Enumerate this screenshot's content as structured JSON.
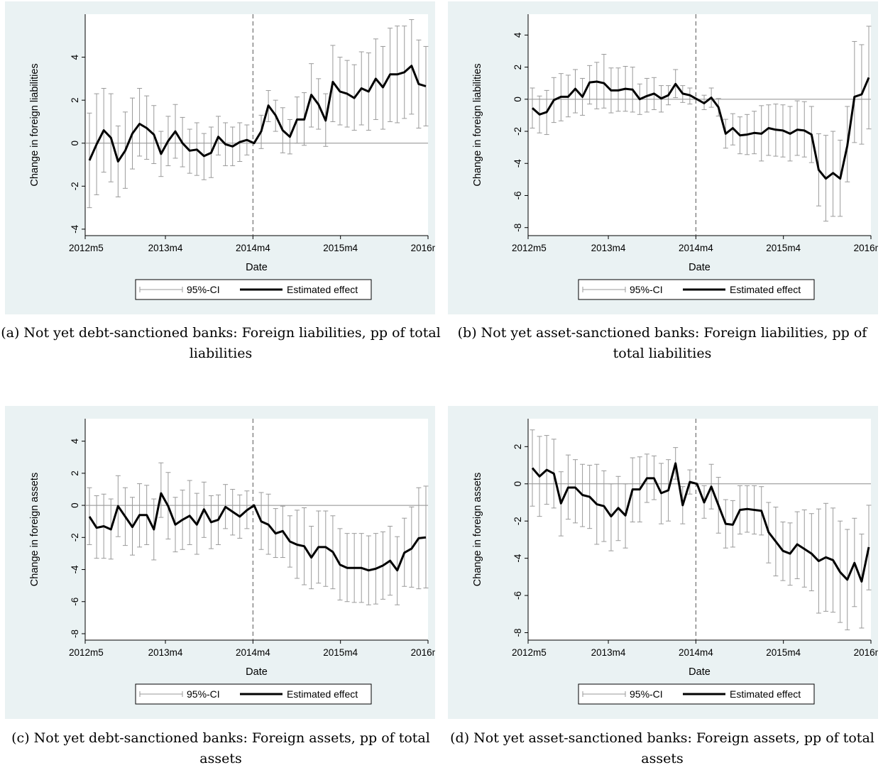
{
  "charts": [
    {
      "caption": "(a) Not yet debt-sanctioned banks: Foreign liabilities, pp of total liabilities",
      "chart_data": {
        "type": "line",
        "x_start": "2012m5",
        "x_end": "2016m4",
        "event_date": "2014m4",
        "xlabel": "Date",
        "ylabel": "Change in foreign liabilities",
        "xticks": [
          "2012m5",
          "2013m4",
          "2014m4",
          "2015m4",
          "2016m4"
        ],
        "yticks": [
          "-4",
          "-2",
          "0",
          "2",
          "4"
        ],
        "ylim": [
          -4.3,
          6
        ],
        "legend": [
          "95%-CI",
          "Estimated effect"
        ],
        "series": [
          {
            "name": "Estimated effect",
            "values": [
              -0.8,
              -0.05,
              0.6,
              0.25,
              -0.85,
              -0.35,
              0.45,
              0.9,
              0.7,
              0.4,
              -0.5,
              0.1,
              0.55,
              0.0,
              -0.35,
              -0.3,
              -0.6,
              -0.45,
              0.3,
              -0.05,
              -0.15,
              0.05,
              0.15,
              0.0,
              0.55,
              1.75,
              1.3,
              0.6,
              0.3,
              1.1,
              1.1,
              2.25,
              1.8,
              1.05,
              2.85,
              2.4,
              2.3,
              2.1,
              2.55,
              2.4,
              3.0,
              2.6,
              3.2,
              3.2,
              3.3,
              3.6,
              2.75,
              2.65
            ]
          },
          {
            "name": "95%-CI",
            "lower": [
              -3.0,
              -2.4,
              -1.35,
              -1.8,
              -2.5,
              -2.1,
              -1.2,
              -0.6,
              -0.75,
              -0.95,
              -1.55,
              -1.05,
              -0.7,
              -1.1,
              -1.4,
              -1.5,
              -1.7,
              -1.6,
              -0.55,
              -1.05,
              -1.05,
              -0.85,
              -0.55,
              0.0,
              -0.25,
              1.0,
              0.55,
              -0.45,
              -0.5,
              0.0,
              -0.1,
              0.75,
              0.65,
              -0.15,
              1.0,
              0.85,
              0.75,
              0.6,
              0.85,
              0.6,
              1.1,
              0.65,
              1.0,
              0.95,
              1.15,
              1.35,
              0.7,
              0.8
            ]
          },
          {
            "name": "95%-CI upper",
            "upper": [
              1.4,
              2.3,
              2.55,
              2.3,
              0.8,
              1.45,
              2.1,
              2.55,
              2.2,
              1.75,
              0.55,
              1.25,
              1.8,
              1.2,
              0.65,
              0.95,
              0.45,
              0.75,
              1.25,
              0.95,
              0.75,
              0.95,
              0.85,
              0.0,
              1.3,
              2.45,
              2.0,
              1.65,
              1.1,
              2.15,
              2.35,
              3.7,
              3.0,
              2.3,
              4.55,
              4.0,
              3.85,
              3.65,
              4.25,
              4.2,
              4.85,
              4.5,
              5.35,
              5.45,
              5.45,
              5.75,
              4.8,
              4.5
            ]
          }
        ]
      }
    },
    {
      "caption": "(b) Not yet asset-sanctioned banks: Foreign liabilities, pp of total liabilities",
      "chart_data": {
        "type": "line",
        "x_start": "2012m5",
        "x_end": "2016m4",
        "event_date": "2014m4",
        "xlabel": "Date",
        "ylabel": "Change in foreign liabilities",
        "xticks": [
          "2012m5",
          "2013m4",
          "2014m4",
          "2015m4",
          "2016m4"
        ],
        "yticks": [
          "-8",
          "-6",
          "-4",
          "-2",
          "0",
          "2",
          "4"
        ],
        "ylim": [
          -8.5,
          5.3
        ],
        "legend": [
          "95%-CI",
          "Estimated effect"
        ],
        "series": [
          {
            "name": "Estimated effect",
            "values": [
              -0.55,
              -0.95,
              -0.8,
              -0.05,
              0.15,
              0.15,
              0.65,
              0.15,
              1.05,
              1.1,
              1.0,
              0.55,
              0.55,
              0.65,
              0.6,
              0.0,
              0.2,
              0.35,
              0.05,
              0.25,
              0.95,
              0.35,
              0.25,
              0.0,
              -0.25,
              0.1,
              -0.5,
              -2.15,
              -1.8,
              -2.25,
              -2.2,
              -2.1,
              -2.15,
              -1.8,
              -1.9,
              -1.95,
              -2.15,
              -1.9,
              -1.95,
              -2.2,
              -4.4,
              -4.95,
              -4.6,
              -4.95,
              -2.9,
              0.15,
              0.3,
              1.35
            ]
          },
          {
            "name": "95%-CI",
            "lower": [
              -1.8,
              -2.1,
              -2.2,
              -1.45,
              -1.35,
              -1.1,
              -0.85,
              -1.0,
              -0.3,
              -0.6,
              -0.55,
              -0.85,
              -0.75,
              -0.75,
              -0.8,
              -0.95,
              -0.8,
              -0.65,
              -0.8,
              -0.35,
              0.1,
              -0.2,
              -0.3,
              0.0,
              -0.65,
              -0.5,
              -1.05,
              -3.05,
              -2.85,
              -3.4,
              -3.45,
              -3.4,
              -3.85,
              -3.5,
              -3.55,
              -3.6,
              -3.85,
              -3.5,
              -3.6,
              -3.95,
              -6.65,
              -7.6,
              -7.3,
              -7.3,
              -5.15,
              -2.7,
              -2.8,
              -1.85
            ]
          },
          {
            "name": "95%-CI upper",
            "upper": [
              0.7,
              0.2,
              0.55,
              1.35,
              1.6,
              1.5,
              1.85,
              1.3,
              2.1,
              2.3,
              2.8,
              1.95,
              1.95,
              2.05,
              2.0,
              0.95,
              1.3,
              1.35,
              0.85,
              0.85,
              1.85,
              0.85,
              0.7,
              0.0,
              0.25,
              0.7,
              0.05,
              -1.25,
              -0.9,
              -1.1,
              -0.95,
              -0.75,
              -0.4,
              -0.35,
              -0.3,
              -0.35,
              -0.45,
              -0.1,
              -0.15,
              -0.45,
              -2.15,
              -2.25,
              -2.0,
              -2.55,
              -0.45,
              3.6,
              3.4,
              4.55
            ]
          }
        ]
      }
    },
    {
      "caption": "(c) Not yet debt-sanctioned banks: Foreign assets, pp of total assets",
      "chart_data": {
        "type": "line",
        "x_start": "2012m5",
        "x_end": "2016m4",
        "event_date": "2014m4",
        "xlabel": "Date",
        "ylabel": "Change in foreign assets",
        "xticks": [
          "2012m5",
          "2013m4",
          "2014m4",
          "2015m4",
          "2016m4"
        ],
        "yticks": [
          "-8",
          "-6",
          "-4",
          "-2",
          "0",
          "2",
          "4"
        ],
        "ylim": [
          -8.4,
          5.4
        ],
        "legend": [
          "95%-CI",
          "Estimated effect"
        ],
        "series": [
          {
            "name": "Estimated effect",
            "values": [
              -0.7,
              -1.4,
              -1.3,
              -1.5,
              -0.05,
              -0.7,
              -1.35,
              -0.6,
              -0.6,
              -1.5,
              0.75,
              -0.05,
              -1.2,
              -0.9,
              -0.65,
              -1.2,
              -0.25,
              -1.05,
              -0.9,
              -0.1,
              -0.4,
              -0.7,
              -0.3,
              0.0,
              -1.0,
              -1.2,
              -1.75,
              -1.6,
              -2.25,
              -2.45,
              -2.55,
              -3.25,
              -2.6,
              -2.6,
              -2.9,
              -3.7,
              -3.9,
              -3.9,
              -3.9,
              -4.05,
              -3.95,
              -3.75,
              -3.45,
              -4.05,
              -2.95,
              -2.7,
              -2.05,
              -2.0
            ]
          },
          {
            "name": "95%-CI",
            "lower": [
              -2.45,
              -3.3,
              -3.3,
              -3.35,
              -1.95,
              -2.5,
              -3.1,
              -2.6,
              -2.45,
              -3.4,
              -0.75,
              -2.1,
              -2.9,
              -2.75,
              -2.45,
              -3.05,
              -2.0,
              -2.7,
              -2.45,
              -1.45,
              -1.85,
              -2.05,
              -1.45,
              0.0,
              -2.75,
              -3.05,
              -3.25,
              -3.25,
              -3.85,
              -4.55,
              -4.95,
              -5.2,
              -4.85,
              -5.05,
              -5.2,
              -5.9,
              -6.0,
              -6.05,
              -6.05,
              -6.2,
              -6.15,
              -5.85,
              -5.6,
              -6.2,
              -5.05,
              -5.1,
              -5.2,
              -5.15
            ]
          },
          {
            "name": "95%-CI upper",
            "upper": [
              1.1,
              0.6,
              0.7,
              0.4,
              1.85,
              1.1,
              0.5,
              1.35,
              1.25,
              0.4,
              2.65,
              2.05,
              0.5,
              0.95,
              1.55,
              0.75,
              1.45,
              0.6,
              0.65,
              1.3,
              1.0,
              0.65,
              0.9,
              0.0,
              0.8,
              0.7,
              -0.2,
              -0.05,
              -0.65,
              -0.3,
              -0.15,
              -1.3,
              -0.35,
              -0.35,
              -0.65,
              -1.45,
              -1.75,
              -1.75,
              -1.75,
              -1.9,
              -1.75,
              -1.65,
              -1.3,
              -1.95,
              -0.8,
              -0.1,
              1.1,
              1.2
            ]
          }
        ]
      }
    },
    {
      "caption": "(d) Not yet asset-sanctioned banks: Foreign assets, pp of total assets",
      "chart_data": {
        "type": "line",
        "x_start": "2012m5",
        "x_end": "2016m4",
        "event_date": "2014m4",
        "xlabel": "Date",
        "ylabel": "Change in foreign assets",
        "xticks": [
          "2012m5",
          "2013m4",
          "2014m4",
          "2015m4",
          "2016m4"
        ],
        "yticks": [
          "-8",
          "-6",
          "-4",
          "-2",
          "0",
          "2"
        ],
        "ylim": [
          -8.4,
          3.5
        ],
        "legend": [
          "95%-CI",
          "Estimated effect"
        ],
        "series": [
          {
            "name": "Estimated effect",
            "values": [
              0.85,
              0.4,
              0.75,
              0.55,
              -1.05,
              -0.2,
              -0.2,
              -0.6,
              -0.7,
              -1.1,
              -1.2,
              -1.75,
              -1.3,
              -1.7,
              -0.3,
              -0.3,
              0.3,
              0.3,
              -0.5,
              -0.35,
              1.1,
              -1.15,
              0.1,
              0.0,
              -1.0,
              -0.15,
              -1.15,
              -2.15,
              -2.2,
              -1.4,
              -1.35,
              -1.4,
              -1.45,
              -2.6,
              -3.1,
              -3.6,
              -3.75,
              -3.25,
              -3.5,
              -3.75,
              -4.15,
              -3.95,
              -4.1,
              -4.75,
              -5.15,
              -4.25,
              -5.25,
              -3.4
            ]
          },
          {
            "name": "95%-CI",
            "lower": [
              -1.2,
              -1.75,
              -1.1,
              -1.3,
              -2.8,
              -1.9,
              -2.1,
              -2.3,
              -2.4,
              -3.25,
              -3.1,
              -3.6,
              -3.05,
              -3.45,
              -2.05,
              -2.05,
              -1.0,
              -0.85,
              -2.15,
              -2.0,
              0.25,
              -2.15,
              -0.55,
              0.0,
              -1.85,
              -1.35,
              -2.65,
              -3.45,
              -3.4,
              -2.7,
              -2.6,
              -2.7,
              -2.75,
              -4.25,
              -4.95,
              -5.2,
              -5.45,
              -5.1,
              -5.55,
              -5.75,
              -6.95,
              -6.85,
              -6.9,
              -7.45,
              -7.85,
              -6.6,
              -7.75,
              -5.7
            ]
          },
          {
            "name": "95%-CI upper",
            "upper": [
              2.9,
              2.55,
              2.6,
              2.4,
              0.65,
              1.55,
              1.3,
              1.05,
              1.0,
              1.05,
              0.7,
              0.0,
              0.4,
              0.0,
              1.4,
              1.45,
              1.6,
              1.5,
              1.1,
              1.3,
              1.95,
              -0.15,
              0.75,
              0.0,
              -0.1,
              1.05,
              0.35,
              -0.85,
              -0.9,
              -0.1,
              -0.1,
              -0.1,
              -0.15,
              -1.0,
              -1.25,
              -2.05,
              -2.1,
              -1.5,
              -1.4,
              -1.6,
              -1.35,
              -1.05,
              -1.3,
              -2.0,
              -2.45,
              -1.85,
              -2.7,
              -1.15
            ]
          }
        ]
      }
    }
  ]
}
